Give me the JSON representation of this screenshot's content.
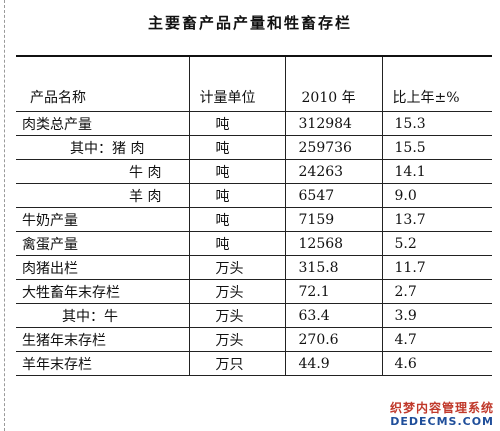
{
  "title": "主要畜产品产量和牲畜存栏",
  "table": {
    "headers": [
      "产品名称",
      "计量单位",
      "2010 年",
      "比上年±%"
    ],
    "rows": [
      {
        "name": "肉类总产量",
        "unit": "吨",
        "value": "312984",
        "change": "15.3"
      },
      {
        "name": "其中：猪   肉",
        "unit": "吨",
        "value": "259736",
        "change": "15.5"
      },
      {
        "name": "牛   肉",
        "unit": "吨",
        "value": "24263",
        "change": "14.1"
      },
      {
        "name": "羊   肉",
        "unit": "吨",
        "value": "6547",
        "change": "9.0"
      },
      {
        "name": "牛奶产量",
        "unit": "吨",
        "value": "7159",
        "change": "13.7"
      },
      {
        "name": "禽蛋产量",
        "unit": "吨",
        "value": "12568",
        "change": "5.2"
      },
      {
        "name": "肉猪出栏",
        "unit": "万头",
        "value": "315.8",
        "change": "11.7"
      },
      {
        "name": "大牲畜年末存栏",
        "unit": "万头",
        "value": "72.1",
        "change": "2.7"
      },
      {
        "name": "其中：牛",
        "unit": "万头",
        "value": "63.4",
        "change": "3.9"
      },
      {
        "name": "生猪年末存栏",
        "unit": "万头",
        "value": "270.6",
        "change": "4.7"
      },
      {
        "name": "羊年末存栏",
        "unit": "万只",
        "value": "44.9",
        "change": "4.6"
      }
    ]
  },
  "watermark": {
    "line1": "织梦内容管理系统",
    "line2": "DEDECMS.COM"
  }
}
